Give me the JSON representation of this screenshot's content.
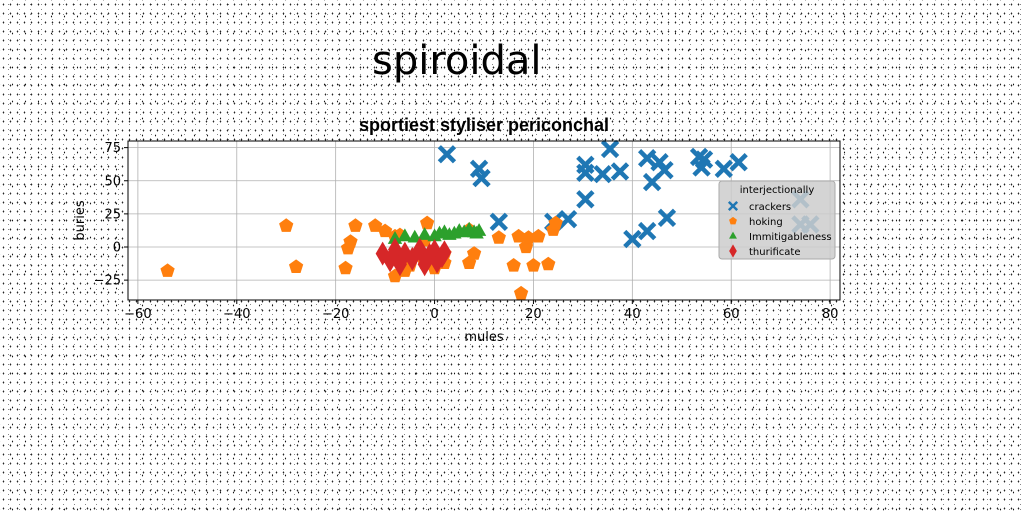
{
  "figure_title": "spiroidal",
  "chart_data": {
    "type": "scatter",
    "title": "sportiest styliser periconchal",
    "xlabel": "mules",
    "ylabel": "buries",
    "xlim": [
      -62,
      82
    ],
    "ylim": [
      -40,
      80
    ],
    "xticks": [
      -60,
      -40,
      -20,
      0,
      20,
      40,
      60,
      80
    ],
    "yticks": [
      -25,
      0,
      25,
      50,
      75
    ],
    "grid": true,
    "legend": {
      "title": "interjectionally",
      "placement": "right"
    },
    "series": [
      {
        "name": "crackers",
        "marker": "x",
        "color": "#1f77b4",
        "points": [
          [
            2.5,
            70
          ],
          [
            9,
            59
          ],
          [
            9.5,
            52
          ],
          [
            13,
            19
          ],
          [
            24,
            19
          ],
          [
            27,
            21
          ],
          [
            30.5,
            62
          ],
          [
            30.5,
            56
          ],
          [
            30.5,
            36
          ],
          [
            34,
            55
          ],
          [
            35.5,
            74
          ],
          [
            37.5,
            57
          ],
          [
            40,
            6
          ],
          [
            43,
            67
          ],
          [
            43,
            12
          ],
          [
            44,
            49
          ],
          [
            45.5,
            64
          ],
          [
            46.5,
            58
          ],
          [
            47,
            22
          ],
          [
            53.5,
            68
          ],
          [
            54,
            60
          ],
          [
            54.5,
            66
          ],
          [
            58.5,
            59
          ],
          [
            61.5,
            64
          ],
          [
            74,
            36
          ],
          [
            74,
            17
          ],
          [
            76,
            17
          ]
        ]
      },
      {
        "name": "hoking",
        "marker": "pentagon",
        "color": "#ff7f0e",
        "points": [
          [
            -54,
            -18
          ],
          [
            -30,
            16
          ],
          [
            -28,
            -15
          ],
          [
            -18,
            -16
          ],
          [
            -17.5,
            -1
          ],
          [
            -17,
            4
          ],
          [
            -16,
            16
          ],
          [
            -12,
            16
          ],
          [
            -10,
            12
          ],
          [
            -8,
            8
          ],
          [
            -8,
            -22
          ],
          [
            -7,
            9
          ],
          [
            -6,
            -18
          ],
          [
            -5,
            -14
          ],
          [
            -2,
            5
          ],
          [
            -2,
            -12
          ],
          [
            -1.5,
            18
          ],
          [
            0,
            -16
          ],
          [
            2,
            -5
          ],
          [
            2,
            -12
          ],
          [
            7,
            13
          ],
          [
            7,
            -12
          ],
          [
            8,
            -5
          ],
          [
            13,
            7
          ],
          [
            16,
            -14
          ],
          [
            17,
            8
          ],
          [
            17.5,
            -35
          ],
          [
            18.5,
            0
          ],
          [
            19,
            7
          ],
          [
            20,
            -14
          ],
          [
            21,
            8
          ],
          [
            23,
            -13
          ],
          [
            24,
            13
          ],
          [
            24.5,
            18
          ]
        ]
      },
      {
        "name": "Immitigableness",
        "marker": "triangle",
        "color": "#2ca02c",
        "points": [
          [
            -8,
            6
          ],
          [
            -6,
            8
          ],
          [
            -4,
            7
          ],
          [
            -2,
            9
          ],
          [
            0,
            8
          ],
          [
            1,
            10
          ],
          [
            2,
            11
          ],
          [
            3,
            9
          ],
          [
            4,
            10
          ],
          [
            5,
            12
          ],
          [
            6,
            11
          ],
          [
            7,
            13
          ],
          [
            8,
            11
          ],
          [
            8.5,
            10
          ],
          [
            9,
            12
          ]
        ]
      },
      {
        "name": "thurificate",
        "marker": "diamond",
        "color": "#d62728",
        "points": [
          [
            -10.5,
            -5
          ],
          [
            -9,
            -10
          ],
          [
            -8,
            -2
          ],
          [
            -7,
            -13
          ],
          [
            -6,
            -5
          ],
          [
            -4.5,
            -9
          ],
          [
            -3,
            -2
          ],
          [
            -2,
            -13
          ],
          [
            -1,
            -6
          ],
          [
            0,
            -3
          ],
          [
            0.5,
            -11
          ],
          [
            1.5,
            -7
          ],
          [
            2,
            -4
          ]
        ]
      }
    ]
  }
}
